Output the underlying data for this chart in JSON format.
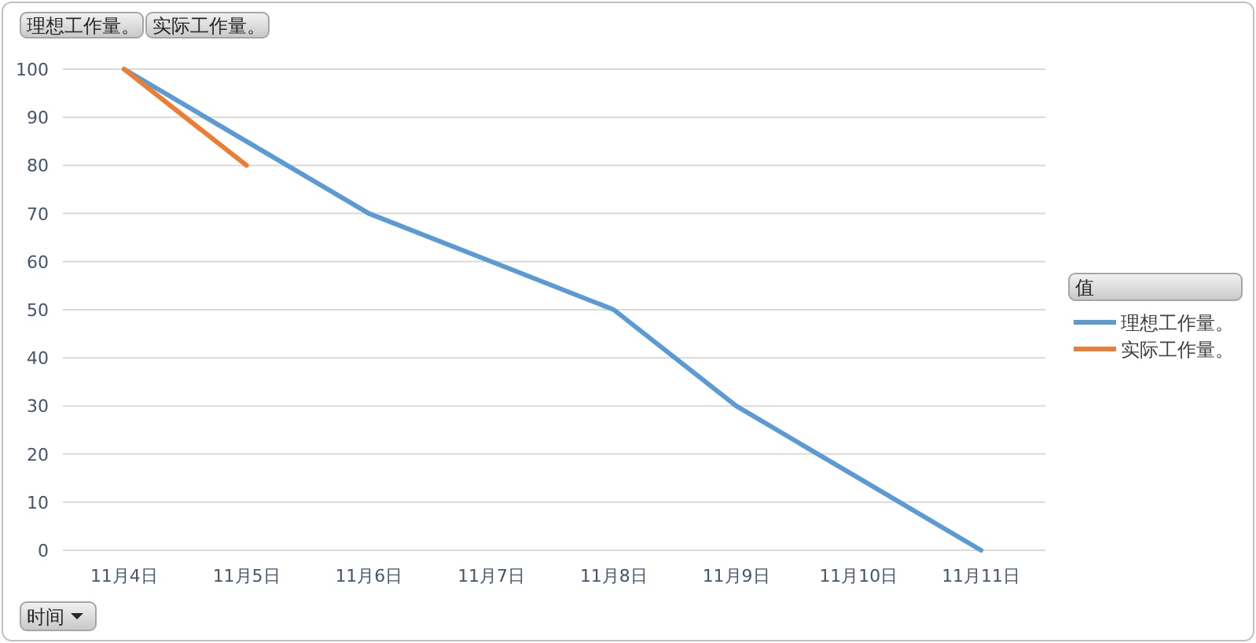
{
  "chart_data": {
    "type": "line",
    "xlabel": "时间",
    "legend_title": "值",
    "annotations": [
      "理想工作量。",
      "实际工作量。"
    ],
    "categories": [
      "11月4日",
      "11月5日",
      "11月6日",
      "11月7日",
      "11月8日",
      "11月9日",
      "11月10日",
      "11月11日"
    ],
    "series": [
      {
        "name": "理想工作量。",
        "color": "#5b9bd5",
        "values": [
          100,
          85,
          70,
          60,
          50,
          30,
          15,
          0
        ]
      },
      {
        "name": "实际工作量。",
        "color": "#ed7d31",
        "values": [
          100,
          80,
          null,
          null,
          null,
          null,
          null,
          null
        ]
      }
    ],
    "ylim": [
      0,
      100
    ],
    "yticks": [
      0,
      10,
      20,
      30,
      40,
      50,
      60,
      70,
      80,
      90,
      100
    ],
    "grid": "y",
    "legend": "right",
    "marker": "none",
    "line_style": "solid"
  }
}
